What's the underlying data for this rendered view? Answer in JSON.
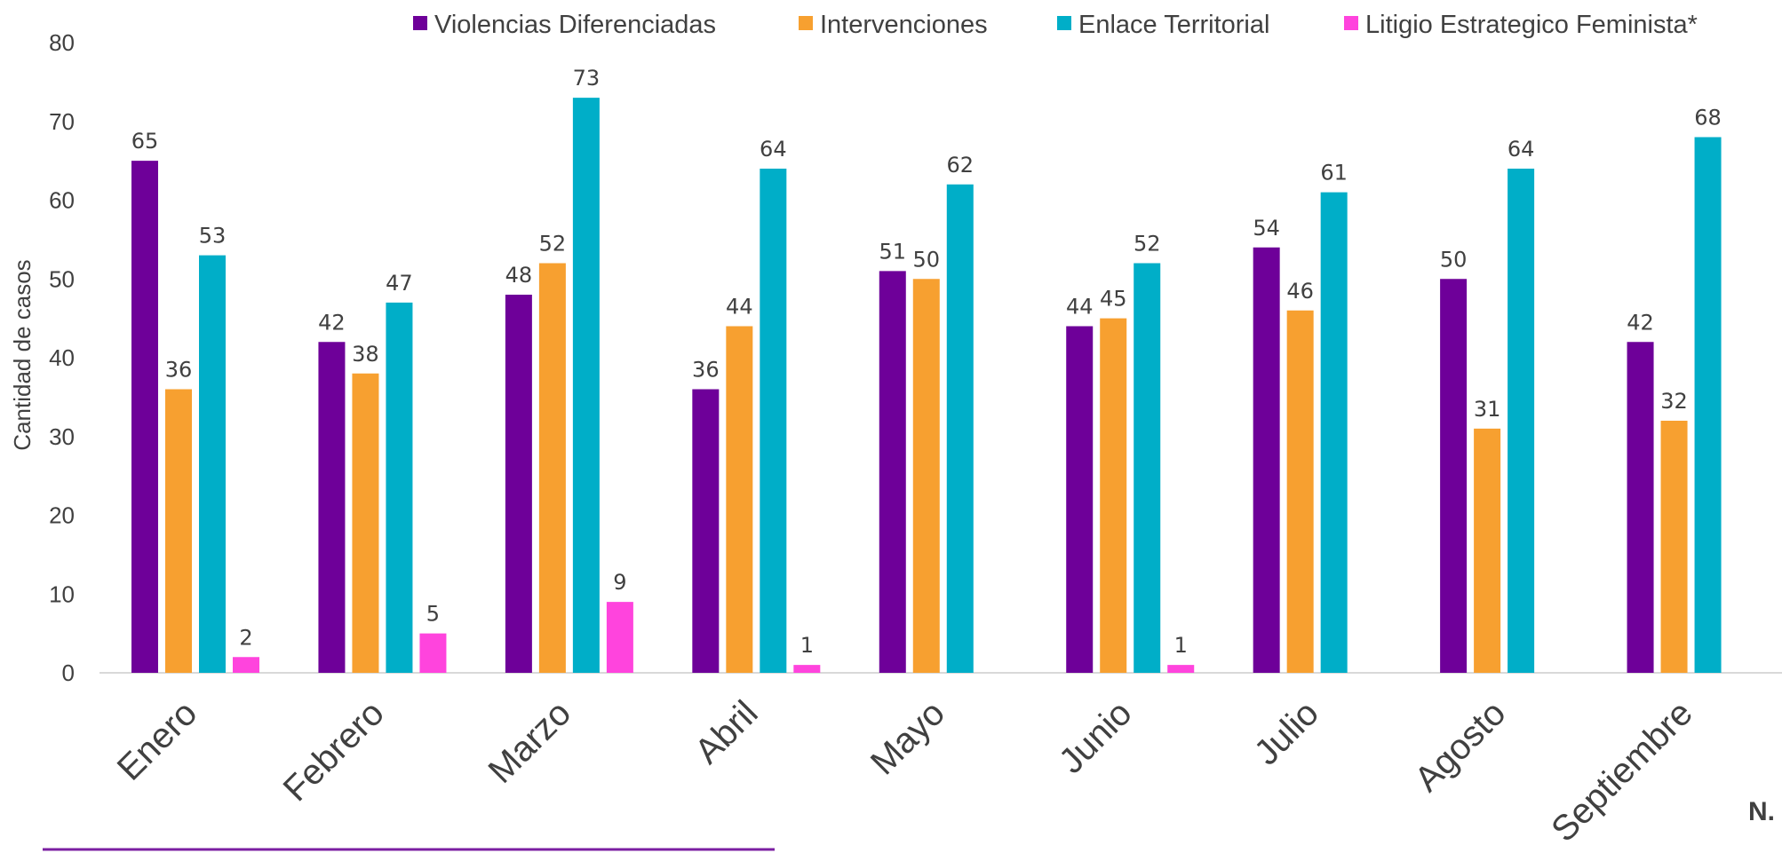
{
  "chart_data": {
    "type": "bar",
    "title": "",
    "xlabel": "",
    "ylabel": "Cantidad de casos",
    "ylim": [
      0,
      80
    ],
    "yticks": [
      0,
      10,
      20,
      30,
      40,
      50,
      60,
      70,
      80
    ],
    "grid": false,
    "legend_position": "top",
    "categories": [
      "Enero",
      "Febrero",
      "Marzo",
      "Abril",
      "Mayo",
      "Junio",
      "Julio",
      "Agosto",
      "Septiembre"
    ],
    "series": [
      {
        "name": "Violencias Diferenciadas",
        "color": "#6e0099",
        "values": [
          65,
          42,
          48,
          36,
          51,
          44,
          54,
          50,
          42
        ]
      },
      {
        "name": "Intervenciones",
        "color": "#f7a030",
        "values": [
          36,
          38,
          52,
          44,
          50,
          45,
          46,
          31,
          32
        ]
      },
      {
        "name": "Enlace Territorial",
        "color": "#00aec8",
        "values": [
          53,
          47,
          73,
          64,
          62,
          52,
          61,
          64,
          68
        ]
      },
      {
        "name": "Litigio Estrategico Feminista*",
        "color": "#ff44dd",
        "values": [
          2,
          5,
          9,
          1,
          null,
          1,
          null,
          null,
          null
        ]
      }
    ]
  },
  "note": {
    "text": "N."
  },
  "colors": {
    "axis": "#d9d9d9",
    "text": "#404040",
    "footer_line": "#7b1fa2"
  }
}
